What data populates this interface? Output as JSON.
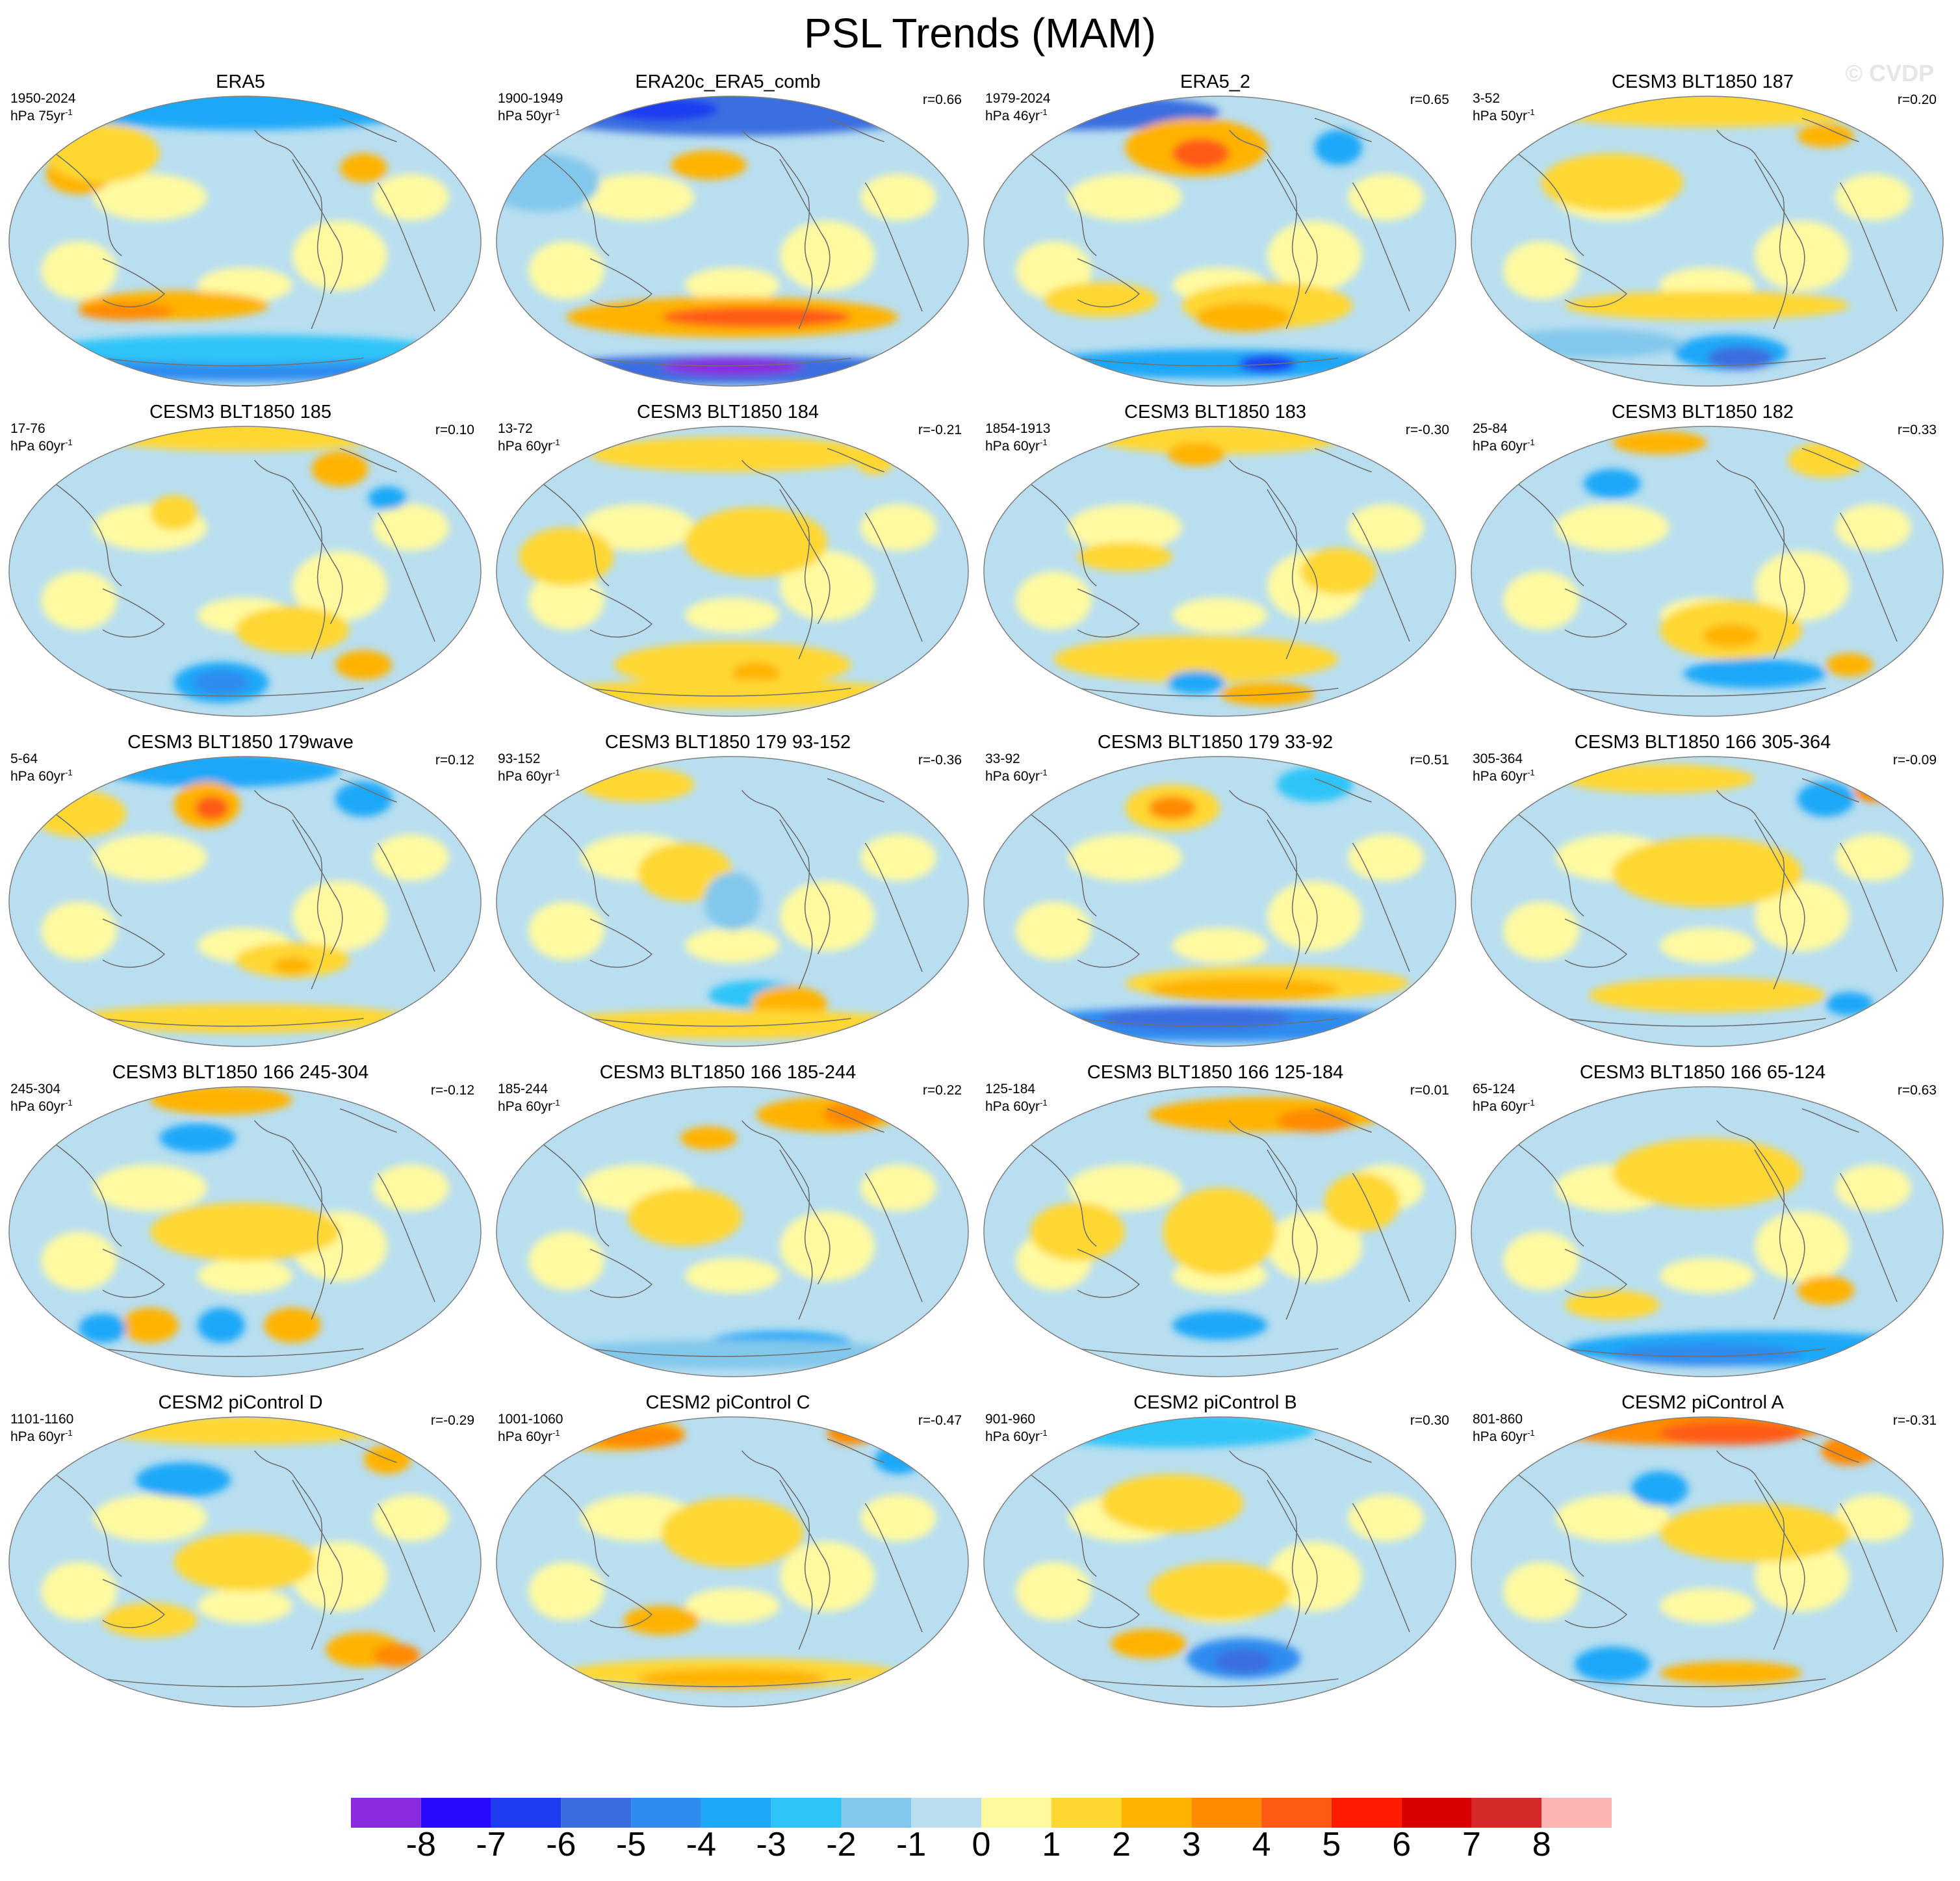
{
  "title": "PSL Trends (MAM)",
  "watermark": "© CVDP",
  "panels": [
    {
      "title": "ERA5",
      "years": "1950-2024",
      "unit_base": "hPa 75yr",
      "unit_exp": "-1",
      "corr": "",
      "pattern": "era5"
    },
    {
      "title": "ERA20c_ERA5_comb",
      "years": "1900-1949",
      "unit_base": "hPa 50yr",
      "unit_exp": "-1",
      "corr": "r=0.66",
      "pattern": "era20c"
    },
    {
      "title": "ERA5_2",
      "years": "1979-2024",
      "unit_base": "hPa 46yr",
      "unit_exp": "-1",
      "corr": "r=0.65",
      "pattern": "era5b"
    },
    {
      "title": "CESM3 BLT1850 187",
      "years": "3-52",
      "unit_base": "hPa 50yr",
      "unit_exp": "-1",
      "corr": "r=0.20",
      "pattern": "m187"
    },
    {
      "title": "CESM3 BLT1850 185",
      "years": "17-76",
      "unit_base": "hPa 60yr",
      "unit_exp": "-1",
      "corr": "r=0.10",
      "pattern": "m185"
    },
    {
      "title": "CESM3 BLT1850 184",
      "years": "13-72",
      "unit_base": "hPa 60yr",
      "unit_exp": "-1",
      "corr": "r=-0.21",
      "pattern": "m184"
    },
    {
      "title": "CESM3 BLT1850 183",
      "years": "1854-1913",
      "unit_base": "hPa 60yr",
      "unit_exp": "-1",
      "corr": "r=-0.30",
      "pattern": "m183"
    },
    {
      "title": "CESM3 BLT1850 182",
      "years": "25-84",
      "unit_base": "hPa 60yr",
      "unit_exp": "-1",
      "corr": "r=0.33",
      "pattern": "m182"
    },
    {
      "title": "CESM3 BLT1850 179wave",
      "years": "5-64",
      "unit_base": "hPa 60yr",
      "unit_exp": "-1",
      "corr": "r=0.12",
      "pattern": "m179w"
    },
    {
      "title": "CESM3 BLT1850 179 93-152",
      "years": "93-152",
      "unit_base": "hPa 60yr",
      "unit_exp": "-1",
      "corr": "r=-0.36",
      "pattern": "m179a"
    },
    {
      "title": "CESM3 BLT1850 179 33-92",
      "years": "33-92",
      "unit_base": "hPa 60yr",
      "unit_exp": "-1",
      "corr": "r=0.51",
      "pattern": "m179b"
    },
    {
      "title": "CESM3 BLT1850 166 305-364",
      "years": "305-364",
      "unit_base": "hPa 60yr",
      "unit_exp": "-1",
      "corr": "r=-0.09",
      "pattern": "m166a"
    },
    {
      "title": "CESM3 BLT1850 166 245-304",
      "years": "245-304",
      "unit_base": "hPa 60yr",
      "unit_exp": "-1",
      "corr": "r=-0.12",
      "pattern": "m166b"
    },
    {
      "title": "CESM3 BLT1850 166 185-244",
      "years": "185-244",
      "unit_base": "hPa 60yr",
      "unit_exp": "-1",
      "corr": "r=0.22",
      "pattern": "m166c"
    },
    {
      "title": "CESM3 BLT1850 166 125-184",
      "years": "125-184",
      "unit_base": "hPa 60yr",
      "unit_exp": "-1",
      "corr": "r=0.01",
      "pattern": "m166d"
    },
    {
      "title": "CESM3 BLT1850 166 65-124",
      "years": "65-124",
      "unit_base": "hPa 60yr",
      "unit_exp": "-1",
      "corr": "r=0.63",
      "pattern": "m166e"
    },
    {
      "title": "CESM2 piControl D",
      "years": "1101-1160",
      "unit_base": "hPa 60yr",
      "unit_exp": "-1",
      "corr": "r=-0.29",
      "pattern": "pcD"
    },
    {
      "title": "CESM2 piControl C",
      "years": "1001-1060",
      "unit_base": "hPa 60yr",
      "unit_exp": "-1",
      "corr": "r=-0.47",
      "pattern": "pcC"
    },
    {
      "title": "CESM2 piControl B",
      "years": "901-960",
      "unit_base": "hPa 60yr",
      "unit_exp": "-1",
      "corr": "r=0.30",
      "pattern": "pcB"
    },
    {
      "title": "CESM2 piControl A",
      "years": "801-860",
      "unit_base": "hPa 60yr",
      "unit_exp": "-1",
      "corr": "r=-0.31",
      "pattern": "pcA"
    }
  ],
  "colorbar": {
    "colors": [
      "#8a2be2",
      "#2a0aff",
      "#1e3cf0",
      "#3a6ee0",
      "#2e8cf0",
      "#1ea8f8",
      "#2ec4f8",
      "#82c8ec",
      "#b8def0",
      "#fffaa0",
      "#ffd733",
      "#ffb300",
      "#ff8a00",
      "#ff5a14",
      "#ff1a00",
      "#d80000",
      "#d42a2a",
      "#ffb4b4"
    ],
    "labels": [
      "-8",
      "-7",
      "-6",
      "-5",
      "-4",
      "-3",
      "-2",
      "-1",
      "0",
      "1",
      "2",
      "3",
      "4",
      "5",
      "6",
      "7",
      "8"
    ]
  }
}
